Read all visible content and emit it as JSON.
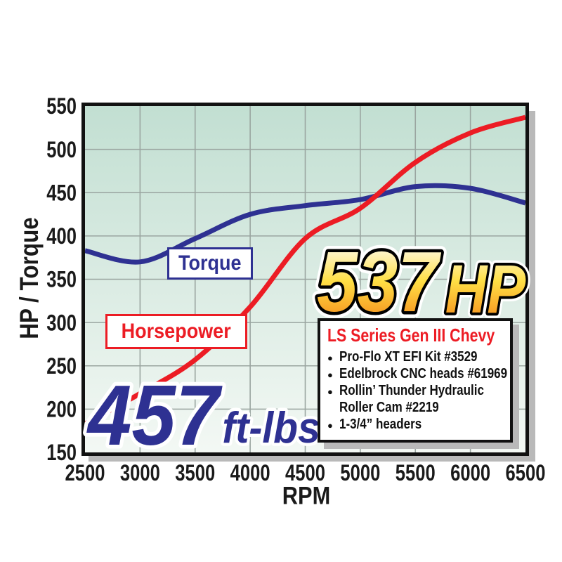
{
  "chart_data": {
    "type": "line",
    "xlabel": "RPM",
    "ylabel": "HP / Torque",
    "x": [
      2500,
      3000,
      3500,
      4000,
      4500,
      5000,
      5500,
      6000,
      6500
    ],
    "xlim": [
      2500,
      6500
    ],
    "ylim": [
      150,
      550
    ],
    "ytick_step": 50,
    "grid": true,
    "series": [
      {
        "name": "Torque",
        "color": "#2e3192",
        "values": [
          383,
          370,
          397,
          425,
          435,
          442,
          457,
          455,
          438
        ]
      },
      {
        "name": "Horsepower",
        "color": "#ec1c24",
        "values": [
          183,
          218,
          257,
          318,
          397,
          432,
          485,
          519,
          537
        ]
      }
    ],
    "annotations": {
      "peak_hp": {
        "value": "537",
        "unit": "HP"
      },
      "peak_torque": {
        "value": "457",
        "unit": "ft-lbs"
      }
    }
  },
  "info_box": {
    "title": "LS Series Gen III Chevy",
    "lines": [
      {
        "text": "Pro-Flo XT EFI Kit #3529",
        "bulleted": true
      },
      {
        "text": "Edelbrock CNC heads #61969",
        "bulleted": true
      },
      {
        "text": "Rollin’ Thunder Hydraulic",
        "bulleted": true
      },
      {
        "text": "Roller Cam #2219",
        "bulleted": false
      },
      {
        "text": "1-3/4” headers",
        "bulleted": true
      }
    ]
  },
  "colors": {
    "torque_line": "#2e3192",
    "horsepower_line": "#ec1c24",
    "plot_bg_top": "#c2dfd2",
    "plot_bg_bottom": "#f3f8f4",
    "grid_line": "#9aa5a0",
    "border": "#111111",
    "shadow": "#b9b9b9",
    "gold_top": "#fffcf0",
    "gold_mid": "#ffdf45",
    "gold_bottom": "#f6921e",
    "info_title": "#ed1c24"
  }
}
